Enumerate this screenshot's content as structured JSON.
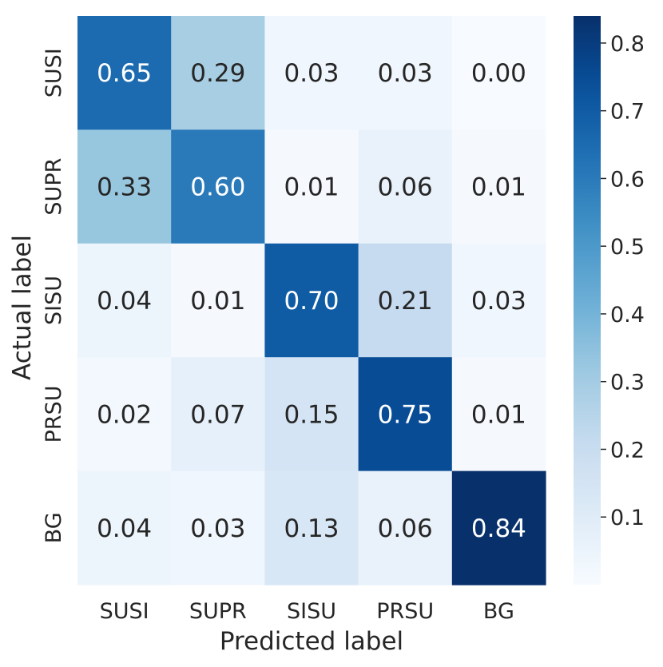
{
  "chart_data": {
    "type": "heatmap",
    "title": "",
    "xlabel": "Predicted label",
    "ylabel": "Actual label",
    "x_categories": [
      "SUSI",
      "SUPR",
      "SISU",
      "PRSU",
      "BG"
    ],
    "y_categories": [
      "SUSI",
      "SUPR",
      "SISU",
      "PRSU",
      "BG"
    ],
    "values": [
      [
        0.65,
        0.29,
        0.03,
        0.03,
        0.0
      ],
      [
        0.33,
        0.6,
        0.01,
        0.06,
        0.01
      ],
      [
        0.04,
        0.01,
        0.7,
        0.21,
        0.03
      ],
      [
        0.02,
        0.07,
        0.15,
        0.75,
        0.01
      ],
      [
        0.04,
        0.03,
        0.13,
        0.06,
        0.84
      ]
    ],
    "value_format": "0.00",
    "colormap": "Blues",
    "color_min": 0.0,
    "color_max": 0.84,
    "colorbar": {
      "ticks": [
        0.1,
        0.2,
        0.3,
        0.4,
        0.5,
        0.6,
        0.7,
        0.8
      ],
      "tick_labels": [
        "0.1",
        "0.2",
        "0.3",
        "0.4",
        "0.5",
        "0.6",
        "0.7",
        "0.8"
      ],
      "placement": "right"
    },
    "grid": false,
    "colors": {
      "text_dark": "#262626",
      "text_light": "#ffffff",
      "background": "#ffffff"
    }
  }
}
